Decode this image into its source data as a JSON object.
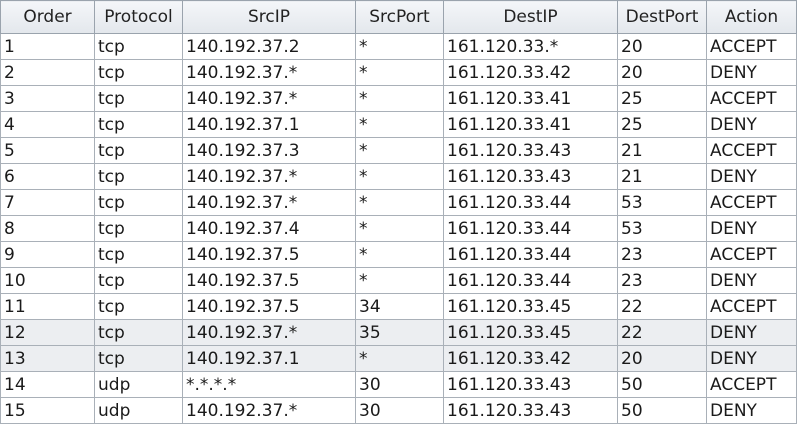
{
  "columns": [
    "Order",
    "Protocol",
    "SrcIP",
    "SrcPort",
    "DestIP",
    "DestPort",
    "Action"
  ],
  "rows": [
    [
      "1",
      "tcp",
      "140.192.37.2",
      "*",
      "161.120.33.*",
      "20",
      "ACCEPT"
    ],
    [
      "2",
      "tcp",
      "140.192.37.*",
      "*",
      "161.120.33.42",
      "20",
      "DENY"
    ],
    [
      "3",
      "tcp",
      "140.192.37.*",
      "*",
      "161.120.33.41",
      "25",
      "ACCEPT"
    ],
    [
      "4",
      "tcp",
      "140.192.37.1",
      "*",
      "161.120.33.41",
      "25",
      "DENY"
    ],
    [
      "5",
      "tcp",
      "140.192.37.3",
      "*",
      "161.120.33.43",
      "21",
      "ACCEPT"
    ],
    [
      "6",
      "tcp",
      "140.192.37.*",
      "*",
      "161.120.33.43",
      "21",
      "DENY"
    ],
    [
      "7",
      "tcp",
      "140.192.37.*",
      "*",
      "161.120.33.44",
      "53",
      "ACCEPT"
    ],
    [
      "8",
      "tcp",
      "140.192.37.4",
      "*",
      "161.120.33.44",
      "53",
      "DENY"
    ],
    [
      "9",
      "tcp",
      "140.192.37.5",
      "*",
      "161.120.33.44",
      "23",
      "ACCEPT"
    ],
    [
      "10",
      "tcp",
      "140.192.37.5",
      "*",
      "161.120.33.44",
      "23",
      "DENY"
    ],
    [
      "11",
      "tcp",
      "140.192.37.5",
      "34",
      "161.120.33.45",
      "22",
      "ACCEPT"
    ],
    [
      "12",
      "tcp",
      "140.192.37.*",
      "35",
      "161.120.33.45",
      "22",
      "DENY"
    ],
    [
      "13",
      "tcp",
      "140.192.37.1",
      "*",
      "161.120.33.42",
      "20",
      "DENY"
    ],
    [
      "14",
      "udp",
      "*.*.*.*",
      "30",
      "161.120.33.43",
      "50",
      "ACCEPT"
    ],
    [
      "15",
      "udp",
      "140.192.37.*",
      "30",
      "161.120.33.43",
      "50",
      "DENY"
    ]
  ],
  "highlighted_rows": [
    12,
    13
  ]
}
